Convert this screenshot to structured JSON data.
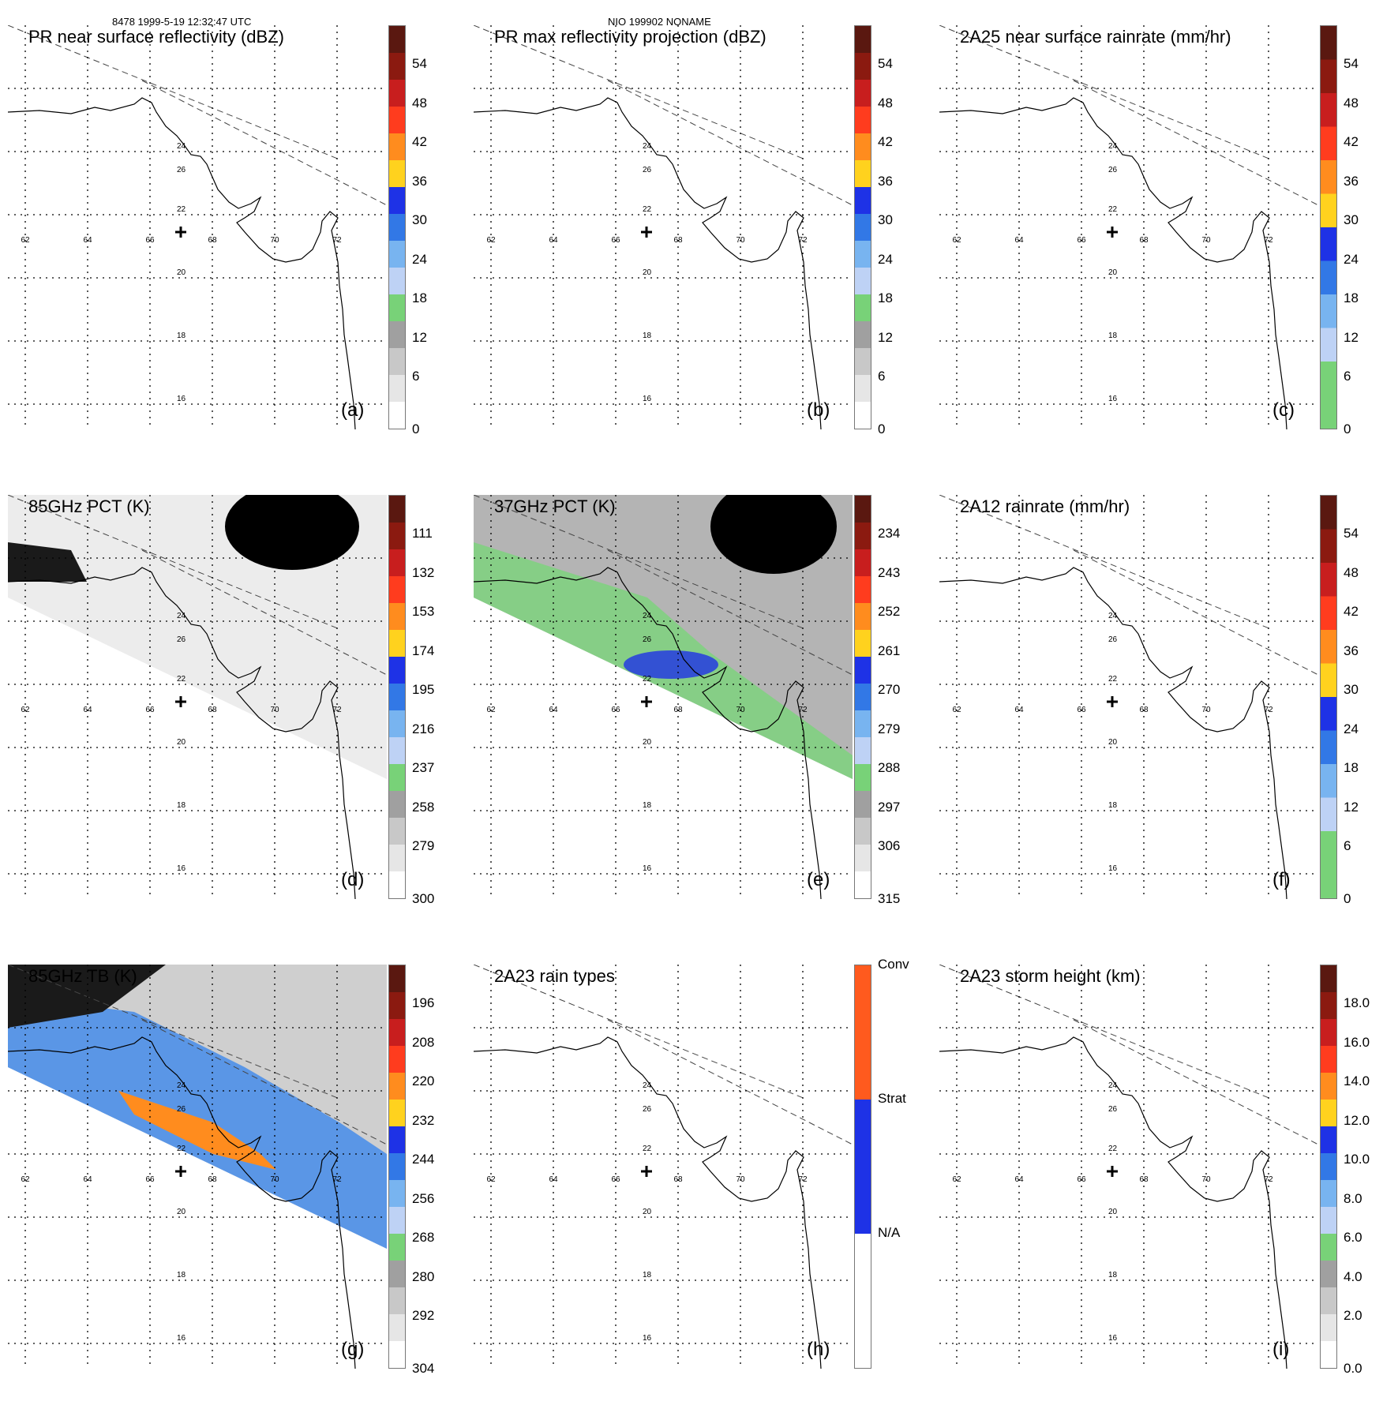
{
  "header": {
    "orbit_time": "8478 1999-5-19 12:32:47 UTC",
    "storm": "NIO 199902 NONAME"
  },
  "lon_labels": [
    "62",
    "64",
    "66",
    "68",
    "70",
    "72"
  ],
  "lat_labels": [
    "26",
    "24",
    "22",
    "20",
    "18",
    "16"
  ],
  "panels": [
    {
      "title": "PR near surface reflectivity (dBZ)",
      "letter": "(a)",
      "ticks": [
        "54",
        "48",
        "42",
        "36",
        "30",
        "24",
        "18",
        "12",
        "6",
        "0"
      ],
      "colors": [
        "#5a1810",
        "#8b1a10",
        "#c81e1e",
        "#ff3c1e",
        "#ff8c1e",
        "#ffd21e",
        "#1e32e6",
        "#3278e6",
        "#78b4f0",
        "#bed2f5",
        "#78d278",
        "#a0a0a0",
        "#c8c8c8",
        "#e6e6e6",
        "#ffffff"
      ],
      "swath": "none"
    },
    {
      "title": "PR max reflectivity projection (dBZ)",
      "letter": "(b)",
      "ticks": [
        "54",
        "48",
        "42",
        "36",
        "30",
        "24",
        "18",
        "12",
        "6",
        "0"
      ],
      "colors": [
        "#5a1810",
        "#8b1a10",
        "#c81e1e",
        "#ff3c1e",
        "#ff8c1e",
        "#ffd21e",
        "#1e32e6",
        "#3278e6",
        "#78b4f0",
        "#bed2f5",
        "#78d278",
        "#a0a0a0",
        "#c8c8c8",
        "#e6e6e6",
        "#ffffff"
      ],
      "swath": "none"
    },
    {
      "title": "2A25 near surface rainrate (mm/hr)",
      "letter": "(c)",
      "ticks": [
        "54",
        "48",
        "42",
        "36",
        "30",
        "24",
        "18",
        "12",
        "6",
        "0"
      ],
      "colors": [
        "#5a1810",
        "#8b1a10",
        "#c81e1e",
        "#ff3c1e",
        "#ff8c1e",
        "#ffd21e",
        "#1e32e6",
        "#3278e6",
        "#78b4f0",
        "#bed2f5",
        "#78d278",
        "#78d278"
      ],
      "swath": "none"
    },
    {
      "title": "85GHz PCT (K)",
      "letter": "(d)",
      "ticks": [
        "111",
        "132",
        "153",
        "174",
        "195",
        "216",
        "237",
        "258",
        "279",
        "300"
      ],
      "colors": [
        "#5a1810",
        "#8b1a10",
        "#c81e1e",
        "#ff3c1e",
        "#ff8c1e",
        "#ffd21e",
        "#1e32e6",
        "#3278e6",
        "#78b4f0",
        "#bed2f5",
        "#78d278",
        "#a0a0a0",
        "#c8c8c8",
        "#e6e6e6",
        "#ffffff"
      ],
      "swath": "light"
    },
    {
      "title": "37GHz PCT (K)",
      "letter": "(e)",
      "ticks": [
        "234",
        "243",
        "252",
        "261",
        "270",
        "279",
        "288",
        "297",
        "306",
        "315"
      ],
      "colors": [
        "#5a1810",
        "#8b1a10",
        "#c81e1e",
        "#ff3c1e",
        "#ff8c1e",
        "#ffd21e",
        "#1e32e6",
        "#3278e6",
        "#78b4f0",
        "#bed2f5",
        "#78d278",
        "#a0a0a0",
        "#c8c8c8",
        "#e6e6e6",
        "#ffffff"
      ],
      "swath": "grey"
    },
    {
      "title": "2A12 rainrate (mm/hr)",
      "letter": "(f)",
      "ticks": [
        "54",
        "48",
        "42",
        "36",
        "30",
        "24",
        "18",
        "12",
        "6",
        "0"
      ],
      "colors": [
        "#5a1810",
        "#8b1a10",
        "#c81e1e",
        "#ff3c1e",
        "#ff8c1e",
        "#ffd21e",
        "#1e32e6",
        "#3278e6",
        "#78b4f0",
        "#bed2f5",
        "#78d278",
        "#78d278"
      ],
      "swath": "none"
    },
    {
      "title": "85GHz TB (K)",
      "letter": "(g)",
      "ticks": [
        "196",
        "208",
        "220",
        "232",
        "244",
        "256",
        "268",
        "280",
        "292",
        "304"
      ],
      "colors": [
        "#5a1810",
        "#8b1a10",
        "#c81e1e",
        "#ff3c1e",
        "#ff8c1e",
        "#ffd21e",
        "#1e32e6",
        "#3278e6",
        "#78b4f0",
        "#bed2f5",
        "#78d278",
        "#a0a0a0",
        "#c8c8c8",
        "#e6e6e6",
        "#ffffff"
      ],
      "swath": "blue"
    },
    {
      "title": "2A23 rain types",
      "letter": "(h)",
      "ticks": [
        "Conv",
        "Strat",
        "N/A"
      ],
      "colors": [
        "#ff5a1e",
        "#1e32e6",
        "#ffffff"
      ],
      "swath": "none"
    },
    {
      "title": "2A23 storm height (km)",
      "letter": "(i)",
      "ticks": [
        "18.0",
        "16.0",
        "14.0",
        "12.0",
        "10.0",
        "8.0",
        "6.0",
        "4.0",
        "2.0",
        "0.0"
      ],
      "colors": [
        "#5a1810",
        "#8b1a10",
        "#c81e1e",
        "#ff3c1e",
        "#ff8c1e",
        "#ffd21e",
        "#1e32e6",
        "#3278e6",
        "#78b4f0",
        "#bed2f5",
        "#78d278",
        "#a0a0a0",
        "#c8c8c8",
        "#e6e6e6",
        "#ffffff"
      ],
      "swath": "none"
    }
  ]
}
